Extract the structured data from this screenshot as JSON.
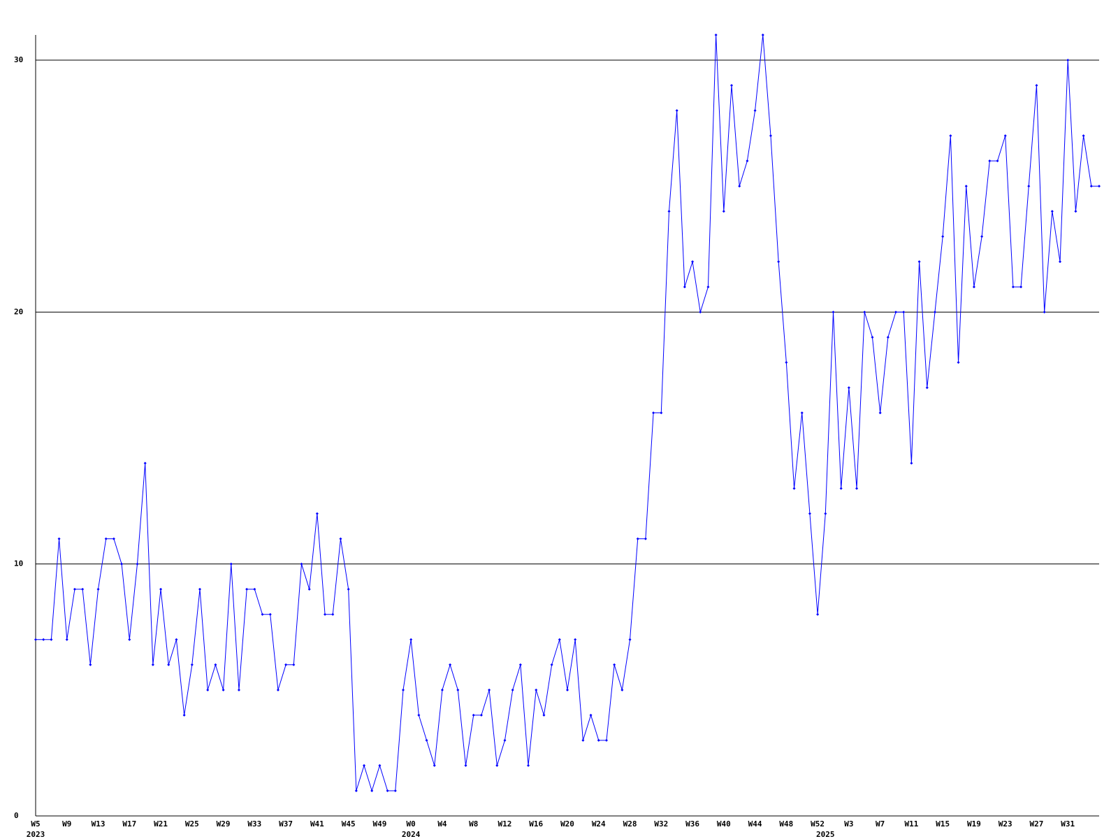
{
  "chart_data": {
    "type": "line",
    "color": "#0000ff",
    "grid": true,
    "ylim": [
      0,
      31
    ],
    "yticks": [
      0,
      10,
      20,
      30
    ],
    "categories": [
      "W5",
      null,
      null,
      null,
      "W9",
      null,
      null,
      null,
      "W13",
      null,
      null,
      null,
      "W17",
      null,
      null,
      null,
      "W21",
      null,
      null,
      null,
      "W25",
      null,
      null,
      null,
      "W29",
      null,
      null,
      null,
      "W33",
      null,
      null,
      null,
      "W37",
      null,
      null,
      null,
      "W41",
      null,
      null,
      null,
      "W45",
      null,
      null,
      null,
      "W49",
      null,
      null,
      null,
      "W0",
      null,
      null,
      null,
      "W4",
      null,
      null,
      null,
      "W8",
      null,
      null,
      null,
      "W12",
      null,
      null,
      null,
      "W16",
      null,
      null,
      null,
      "W20",
      null,
      null,
      null,
      "W24",
      null,
      null,
      null,
      "W28",
      null,
      null,
      null,
      "W32",
      null,
      null,
      null,
      "W36",
      null,
      null,
      null,
      "W40",
      null,
      null,
      null,
      "W44",
      null,
      null,
      null,
      "W48",
      null,
      null,
      null,
      "W52",
      null,
      null,
      null,
      "W3",
      null,
      null,
      null,
      "W7",
      null,
      null,
      null,
      "W11",
      null,
      null,
      null,
      "W15",
      null,
      null,
      null,
      "W19",
      null,
      null,
      null,
      "W23",
      null,
      null,
      null,
      "W27",
      null,
      null,
      null,
      "W31",
      null,
      null,
      null,
      null
    ],
    "category_years": [
      "2023",
      null,
      null,
      null,
      null,
      null,
      null,
      null,
      null,
      null,
      null,
      null,
      null,
      null,
      null,
      null,
      null,
      null,
      null,
      null,
      null,
      null,
      null,
      null,
      null,
      null,
      null,
      null,
      null,
      null,
      null,
      null,
      null,
      null,
      null,
      null,
      null,
      null,
      null,
      null,
      null,
      null,
      null,
      null,
      null,
      null,
      null,
      null,
      "2024",
      null,
      null,
      null,
      null,
      null,
      null,
      null,
      null,
      null,
      null,
      null,
      null,
      null,
      null,
      null,
      null,
      null,
      null,
      null,
      null,
      null,
      null,
      null,
      null,
      null,
      null,
      null,
      null,
      null,
      null,
      null,
      null,
      null,
      null,
      null,
      null,
      null,
      null,
      null,
      null,
      null,
      null,
      null,
      null,
      null,
      null,
      null,
      null,
      null,
      null,
      null,
      null,
      "2025",
      null,
      null,
      null,
      null,
      null,
      null,
      null,
      null,
      null,
      null,
      null,
      null,
      null,
      null,
      null,
      null,
      null,
      null,
      null,
      null,
      null,
      null,
      null,
      null,
      null,
      null,
      null,
      null,
      null,
      null,
      null,
      null,
      null,
      null,
      null
    ],
    "values": [
      7,
      7,
      7,
      11,
      7,
      9,
      9,
      6,
      9,
      11,
      11,
      10,
      7,
      10,
      14,
      6,
      9,
      6,
      7,
      4,
      6,
      9,
      5,
      6,
      5,
      10,
      5,
      9,
      9,
      8,
      8,
      5,
      6,
      6,
      10,
      9,
      12,
      8,
      8,
      11,
      9,
      1,
      2,
      1,
      2,
      1,
      1,
      5,
      7,
      4,
      3,
      2,
      5,
      6,
      5,
      2,
      4,
      4,
      5,
      2,
      3,
      5,
      6,
      2,
      5,
      4,
      6,
      7,
      5,
      7,
      3,
      4,
      3,
      3,
      6,
      5,
      7,
      11,
      11,
      16,
      16,
      24,
      28,
      21,
      22,
      20,
      21,
      31,
      24,
      29,
      25,
      26,
      28,
      31,
      27,
      22,
      18,
      13,
      16,
      12,
      8,
      12,
      20,
      13,
      17,
      13,
      20,
      19,
      16,
      19,
      20,
      20,
      14,
      22,
      17,
      20,
      23,
      27,
      18,
      25,
      21,
      23,
      26,
      26,
      27,
      21,
      21,
      25,
      29,
      20,
      24,
      22,
      30,
      24,
      27,
      25,
      25
    ]
  }
}
